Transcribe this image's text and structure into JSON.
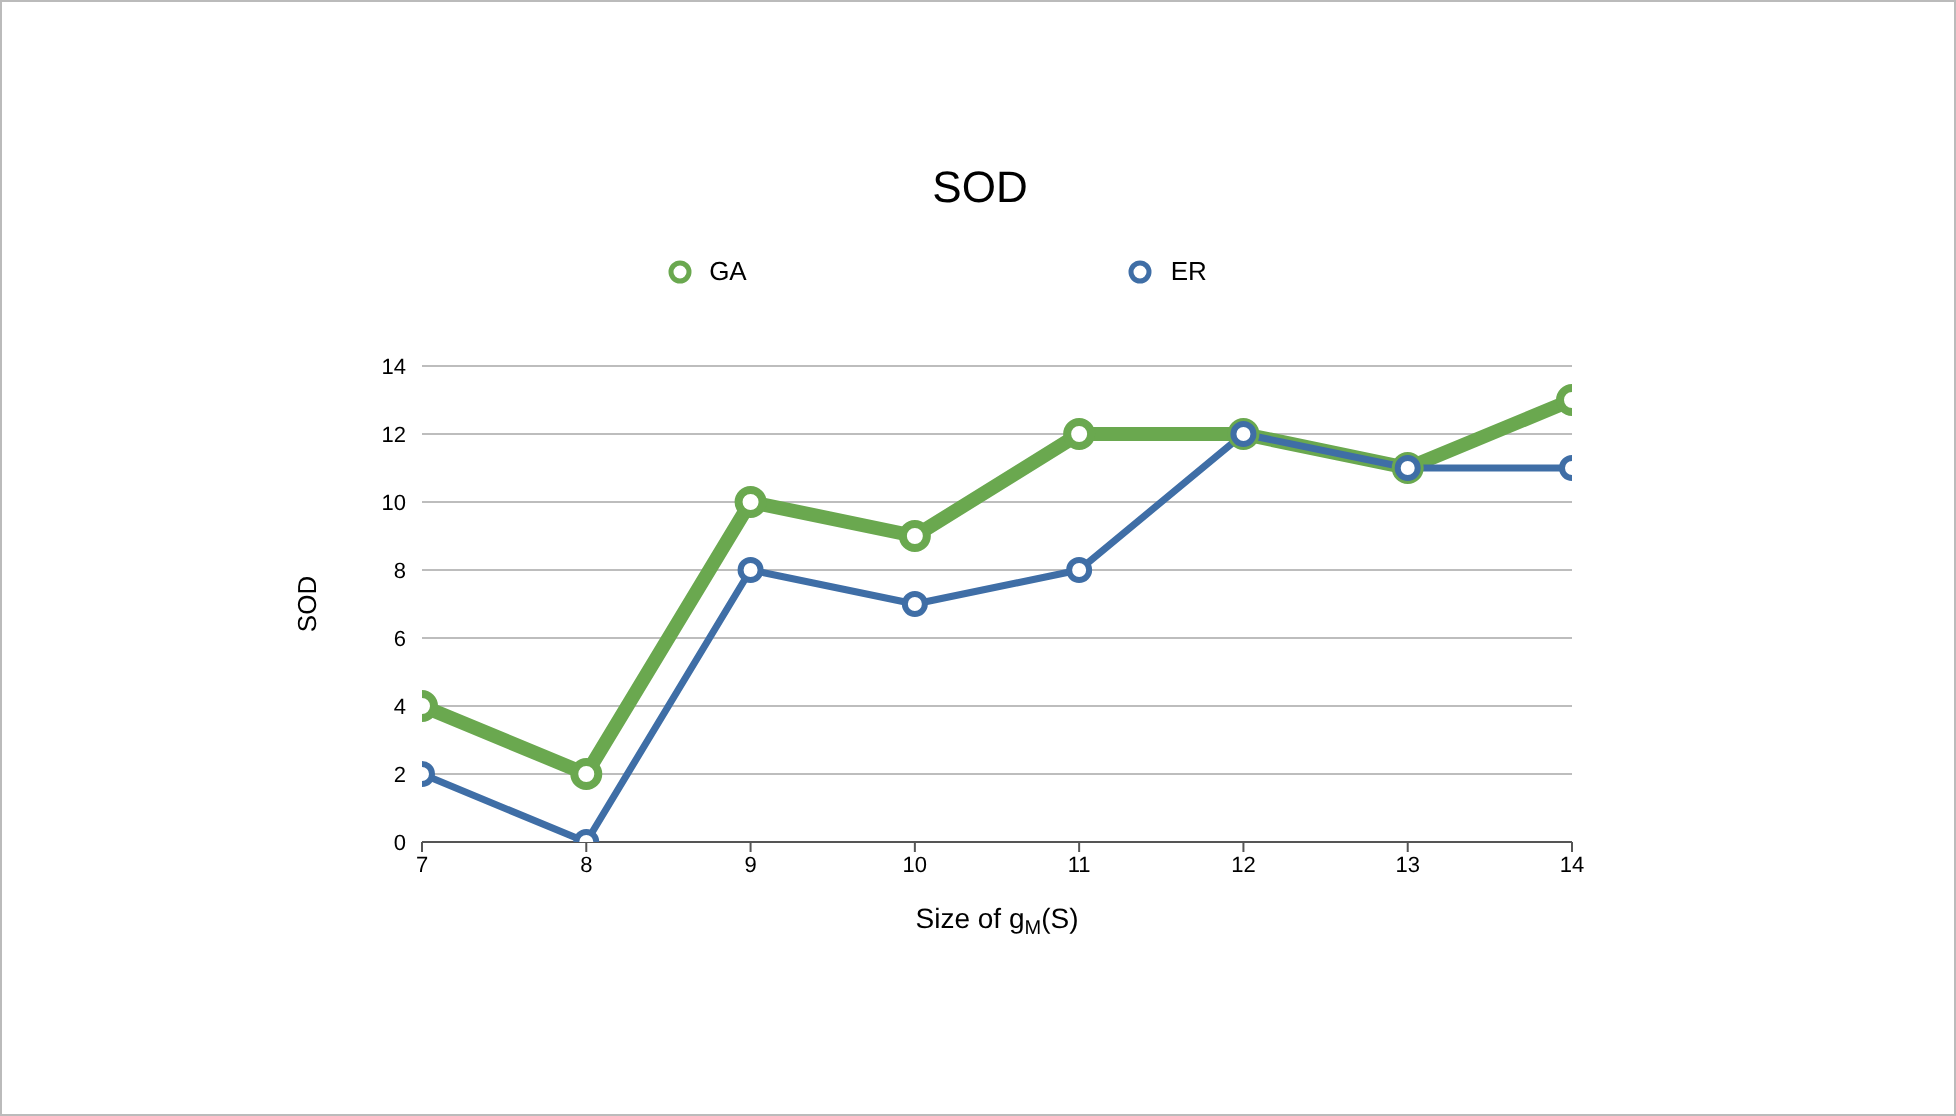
{
  "chart_data": {
    "type": "line",
    "title": "SOD",
    "xlabel": "Size of g$_{M}$(S)",
    "ylabel": "SOD",
    "x": [
      7,
      8,
      9,
      10,
      11,
      12,
      13,
      14
    ],
    "series": [
      {
        "name": "GA",
        "color": "#6aa84f",
        "values": [
          4,
          2,
          10,
          9,
          12,
          12,
          11,
          13
        ]
      },
      {
        "name": "ER",
        "color": "#3f6ea6",
        "values": [
          2,
          0,
          8,
          7,
          8,
          12,
          11,
          11
        ]
      }
    ],
    "xlim": [
      7,
      14
    ],
    "xticks": [
      7,
      8,
      9,
      10,
      11,
      12,
      13,
      14
    ],
    "ylim": [
      0,
      14
    ],
    "yticks": [
      0,
      2,
      4,
      6,
      8,
      10,
      12,
      14
    ],
    "grid": "y",
    "legend": "top",
    "marker": "circle",
    "line_style": "solid"
  }
}
